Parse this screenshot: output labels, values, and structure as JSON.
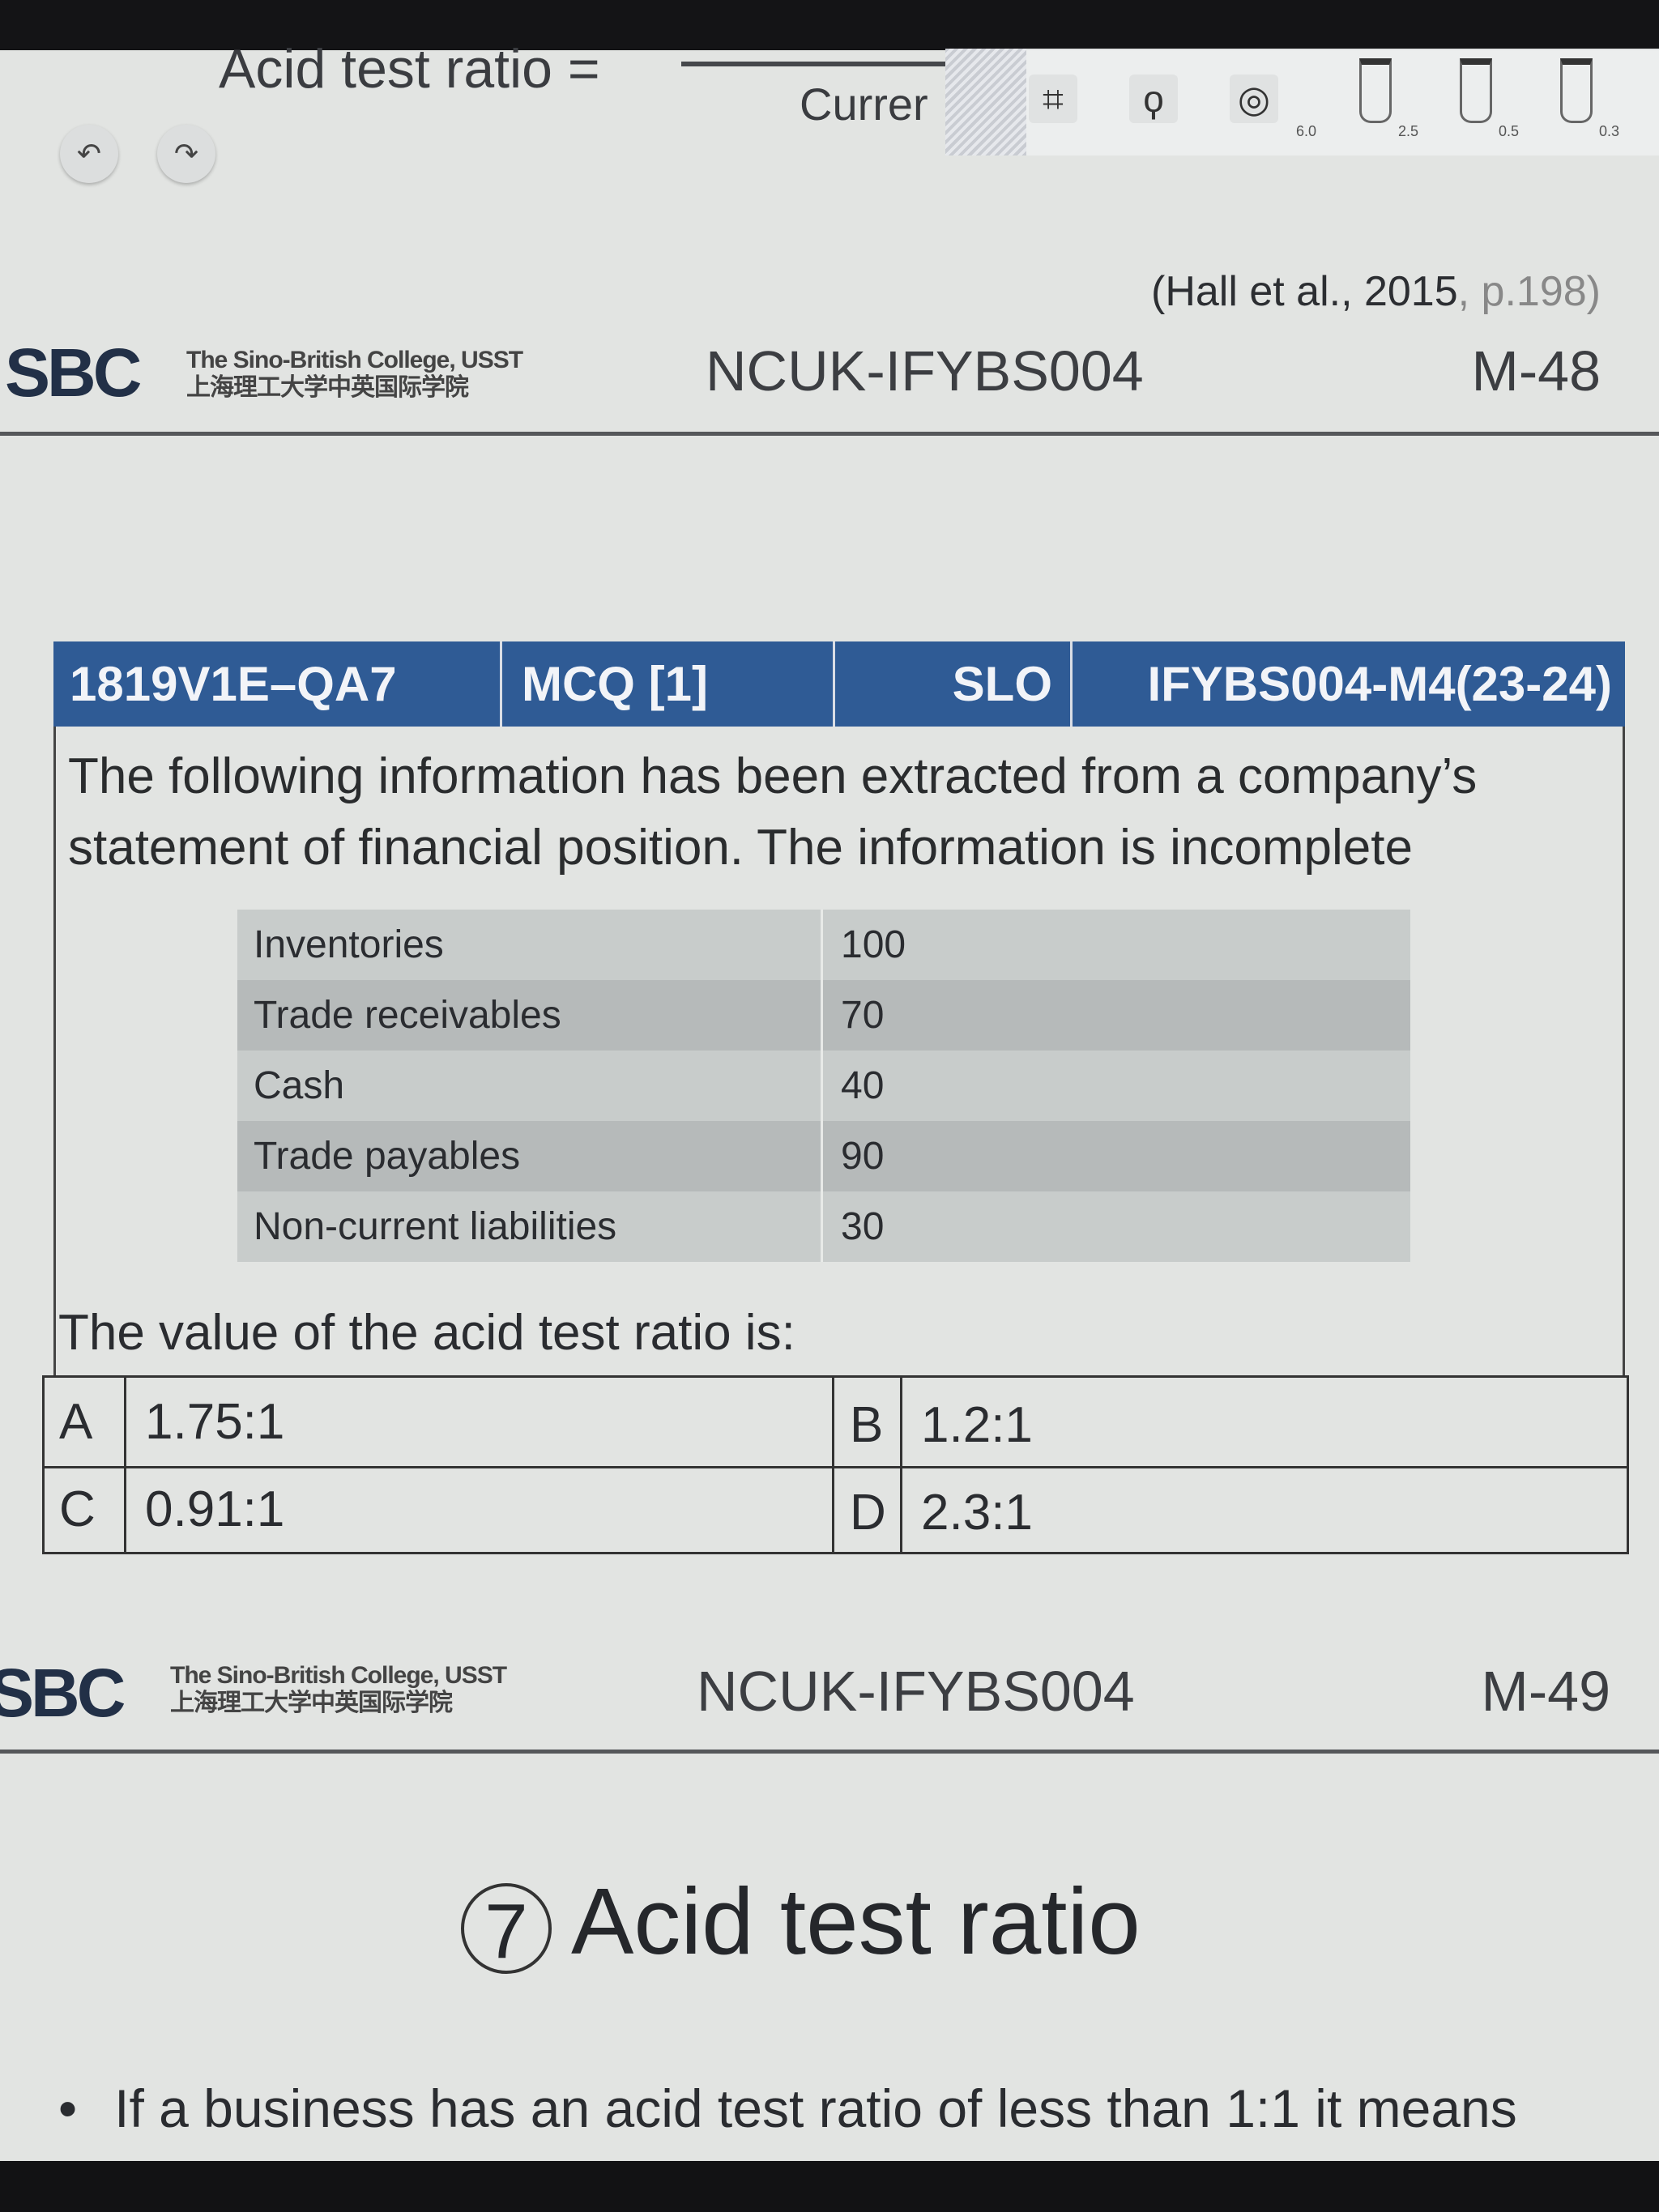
{
  "annotation_toolbar": {
    "formula_text": "Acid test ratio =",
    "formula_denominator": "Currer",
    "tools": [
      {
        "icon": "crop-icon",
        "glyph": "⌗"
      },
      {
        "icon": "lasso-icon",
        "glyph": "ϙ"
      },
      {
        "icon": "eraser-icon",
        "glyph": "◎"
      }
    ],
    "pen_sizes": [
      "6.0",
      "2.5",
      "0.5",
      "0.3"
    ],
    "undo_icon": "undo-icon",
    "redo_icon": "redo-icon"
  },
  "slide1": {
    "citation_main": "(Hall et al., 2015",
    "citation_page": ", p.198)",
    "logo_text": "SBC",
    "college_en": "The Sino-British College, USST",
    "college_cn": "上海理工大学中英国际学院",
    "course_code": "NCUK-IFYBS004",
    "page_code": "M-48"
  },
  "question": {
    "header": {
      "id": "1819V1E–QA7",
      "type": "MCQ [1]",
      "slo": "SLO",
      "module": "IFYBS004-M4(23-24)"
    },
    "stem": "The following information has been extracted from a company’s statement of financial position. The information is incomplete",
    "data_table": [
      {
        "label": "Inventories",
        "value": "100"
      },
      {
        "label": "Trade receivables",
        "value": "70"
      },
      {
        "label": "Cash",
        "value": "40"
      },
      {
        "label": "Trade payables",
        "value": "90"
      },
      {
        "label": "Non-current liabilities",
        "value": "30"
      }
    ],
    "prompt": "The value of the acid test ratio is:",
    "options": [
      {
        "letter": "A",
        "text": "1.75:1"
      },
      {
        "letter": "B",
        "text": "1.2:1"
      },
      {
        "letter": "C",
        "text": "0.91:1"
      },
      {
        "letter": "D",
        "text": "2.3:1"
      }
    ],
    "header_color": "#2f5b95"
  },
  "slide2": {
    "logo_text": "SBC",
    "college_en": "The Sino-British College, USST",
    "college_cn": "上海理工大学中英国际学院",
    "course_code": "NCUK-IFYBS004",
    "page_code": "M-49",
    "title_number": "7",
    "title": "Acid test ratio",
    "bullet": "If a business has an acid test ratio of less than 1:1 it means"
  }
}
